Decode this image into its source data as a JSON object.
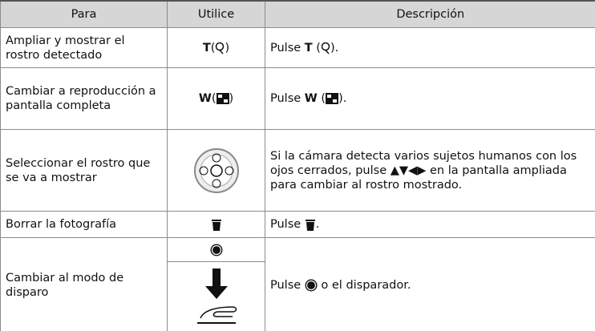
{
  "table": {
    "header": [
      "Para",
      "Utilice",
      "Descripción"
    ],
    "rows": [
      {
        "para": "Ampliar y mostrar el rostro detectado",
        "use": [
          "T",
          "(",
          ")"
        ],
        "desc": [
          "Pulse ",
          "T",
          " (",
          ")."
        ]
      },
      {
        "para": "Cambiar a reproducción a pantalla completa",
        "use": [
          "W",
          "(",
          ")"
        ],
        "desc": [
          "Pulse ",
          "W",
          " (",
          ")."
        ]
      },
      {
        "para": "Seleccionar el rostro que se va a mostrar",
        "desc": [
          "Si la cámara detecta varios sujetos humanos con los ojos cerrados, pulse ",
          "▲▼◀▶",
          " en la pantalla ampliada para cambiar al rostro mostrado."
        ]
      },
      {
        "para": "Borrar la fotografía",
        "desc": [
          "Pulse ",
          "."
        ]
      },
      {
        "para": "Cambiar al modo de disparo",
        "desc": [
          "Pulse ",
          " o el disparador."
        ]
      }
    ]
  }
}
